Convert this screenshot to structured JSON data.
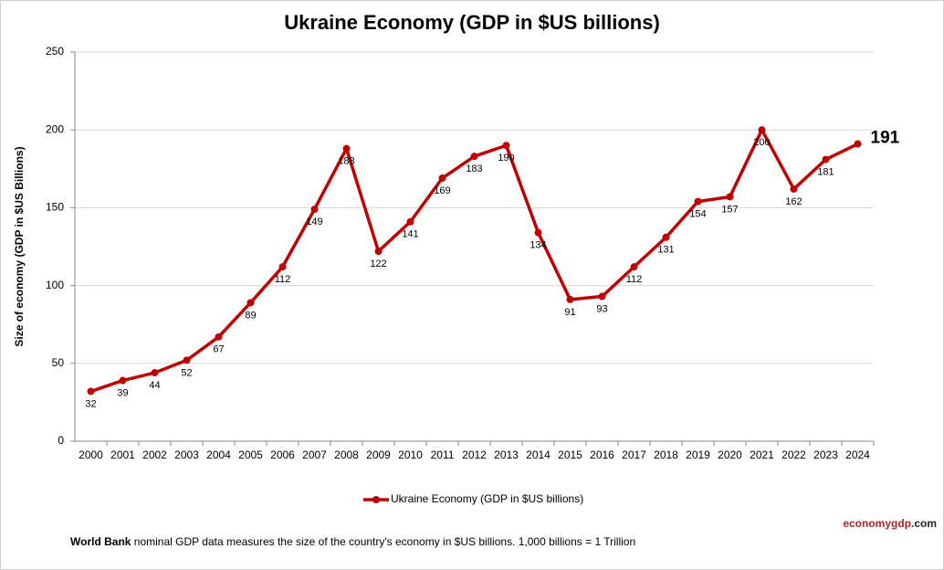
{
  "chart_data": {
    "type": "line",
    "title": "Ukraine Economy (GDP in $US billions)",
    "y_label": "Size of economy (GDP in $US Billions)",
    "categories": [
      "2000",
      "2001",
      "2002",
      "2003",
      "2004",
      "2005",
      "2006",
      "2007",
      "2008",
      "2009",
      "2010",
      "2011",
      "2012",
      "2013",
      "2014",
      "2015",
      "2016",
      "2017",
      "2018",
      "2019",
      "2020",
      "2021",
      "2022",
      "2023",
      "2024"
    ],
    "series": [
      {
        "name": "Ukraine Economy (GDP in $US billions)",
        "color": "#c00000",
        "values": [
          32,
          39,
          44,
          52,
          67,
          89,
          112,
          149,
          188,
          122,
          141,
          169,
          183,
          190,
          134,
          91,
          93,
          112,
          131,
          154,
          157,
          200,
          162,
          181,
          191
        ]
      }
    ],
    "ylim": [
      0,
      250
    ],
    "yticks": [
      0,
      50,
      100,
      150,
      200,
      250
    ],
    "grid": true,
    "legend": "bottom",
    "footnote_bold": "World Bank",
    "footnote": " nominal GDP data  measures the size of the country's economy in $US billions. 1,000 billions = 1 Trillion",
    "brand": [
      "economygdp",
      ".com"
    ]
  }
}
